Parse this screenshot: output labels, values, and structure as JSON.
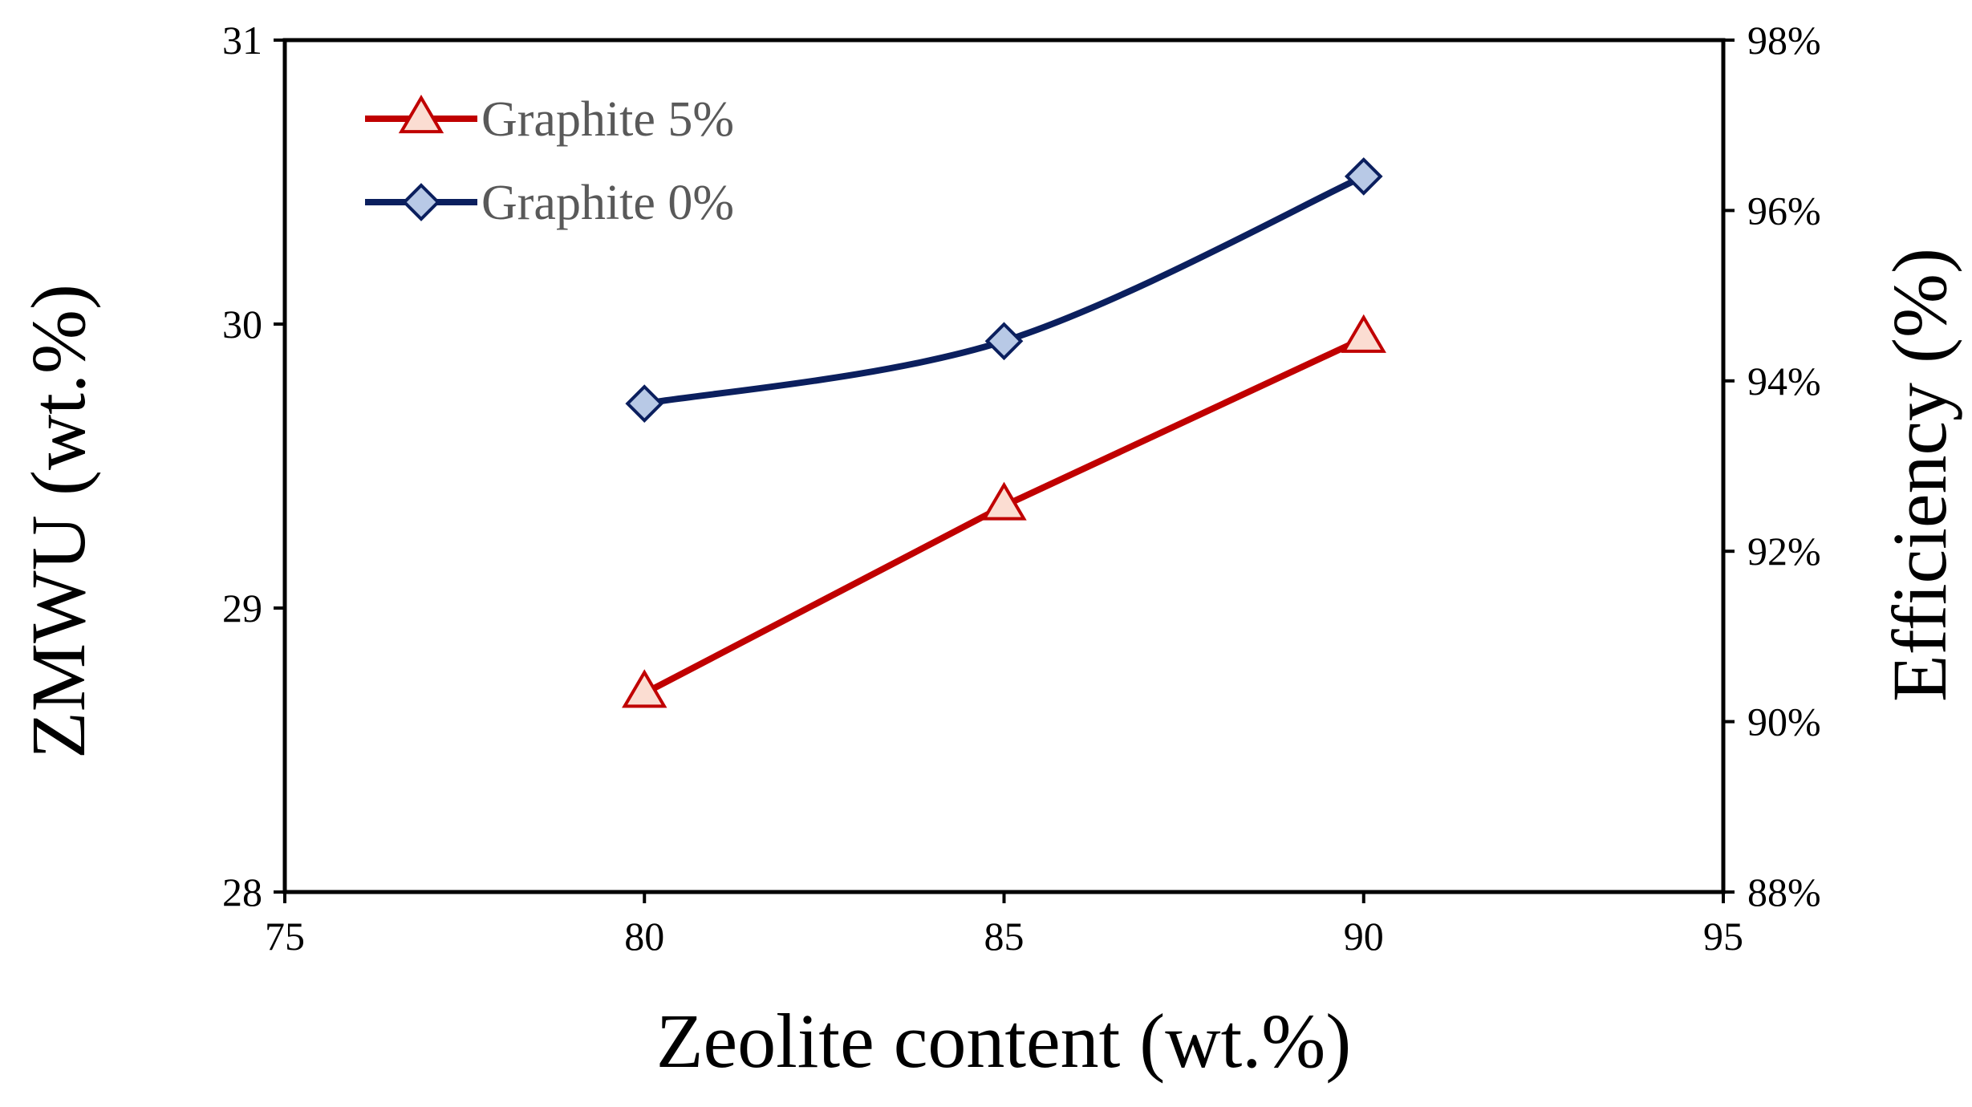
{
  "chart_data": {
    "type": "line",
    "title": "",
    "xlabel": "Zeolite content (wt.%)",
    "ylabel": "ZMWU (wt.%)",
    "y2label": "Efficiency (%)",
    "xlim": [
      75,
      95
    ],
    "ylim": [
      28,
      31
    ],
    "y2lim": [
      0.88,
      0.98
    ],
    "x_ticks": [
      "75",
      "80",
      "85",
      "90",
      "95"
    ],
    "y_ticks": [
      "28",
      "29",
      "30",
      "31"
    ],
    "y2_ticks": [
      "88%",
      "90%",
      "92%",
      "94%",
      "96%",
      "98%"
    ],
    "grid": false,
    "legend_position": "top-left",
    "series": [
      {
        "name": "Graphite 5%",
        "x": [
          80,
          85,
          90
        ],
        "values": [
          28.7,
          29.36,
          29.95
        ],
        "color": "#C00000",
        "marker": "triangle",
        "marker_fill": "#FBDDD2",
        "smooth": false
      },
      {
        "name": "Graphite 0%",
        "x": [
          80,
          85,
          90
        ],
        "values": [
          29.72,
          29.94,
          30.52
        ],
        "color": "#0B1F5E",
        "marker": "diamond",
        "marker_fill": "#B8C9E6",
        "smooth": true
      }
    ]
  }
}
